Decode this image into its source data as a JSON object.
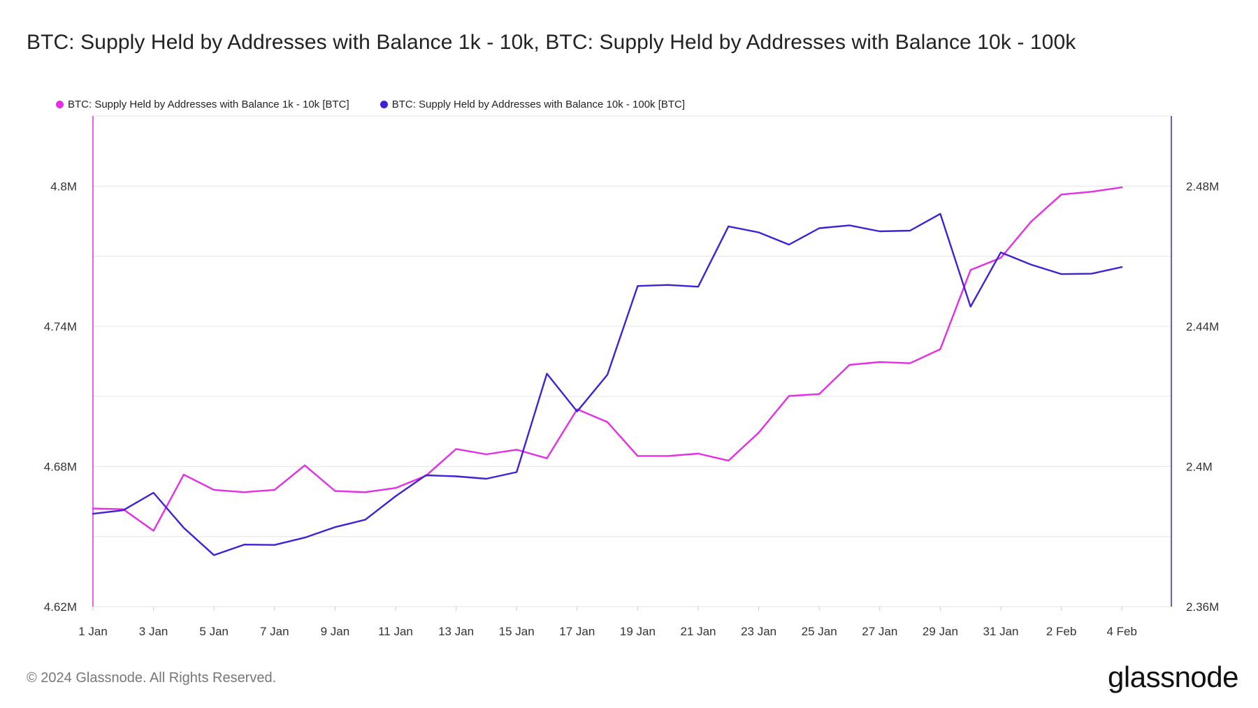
{
  "title": "BTC: Supply Held by Addresses with Balance 1k - 10k, BTC: Supply Held by Addresses with Balance 10k - 100k",
  "footer": {
    "copyright": "© 2024 Glassnode. All Rights Reserved.",
    "brand": "glassnode"
  },
  "chart_data": {
    "type": "line",
    "title": "BTC: Supply Held by Addresses with Balance 1k - 10k, BTC: Supply Held by Addresses with Balance 10k - 100k",
    "legend_position": "top-left",
    "grid": true,
    "x_tick_labels": [
      "1 Jan",
      "3 Jan",
      "5 Jan",
      "7 Jan",
      "9 Jan",
      "11 Jan",
      "13 Jan",
      "15 Jan",
      "17 Jan",
      "19 Jan",
      "21 Jan",
      "23 Jan",
      "25 Jan",
      "27 Jan",
      "29 Jan",
      "31 Jan",
      "2 Feb",
      "4 Feb"
    ],
    "x_day_range": [
      1,
      35
    ],
    "left_axis": {
      "ylim": [
        4.62,
        4.83
      ],
      "ticks": [
        4.62,
        4.68,
        4.74,
        4.8
      ],
      "tick_labels": [
        "4.62M",
        "4.68M",
        "4.74M",
        "4.8M"
      ],
      "gridlines": [
        4.62,
        4.65,
        4.68,
        4.71,
        4.74,
        4.77,
        4.8
      ]
    },
    "right_axis": {
      "ylim": [
        2.36,
        2.5
      ],
      "ticks": [
        2.36,
        2.4,
        2.44,
        2.48
      ],
      "tick_labels": [
        "2.36M",
        "2.4M",
        "2.44M",
        "2.48M"
      ]
    },
    "series": [
      {
        "name": "BTC: Supply Held by Addresses with Balance 1k - 10k [BTC]",
        "axis": "left",
        "color": "#e52ee6",
        "values": [
          4.662,
          4.6617,
          4.6525,
          4.6765,
          4.67,
          4.669,
          4.67,
          4.6805,
          4.6695,
          4.669,
          4.6708,
          4.676,
          4.6875,
          4.6852,
          4.6872,
          4.6835,
          4.7045,
          4.699,
          4.6845,
          4.6845,
          4.6855,
          4.6825,
          4.6945,
          4.7102,
          4.711,
          4.7235,
          4.7247,
          4.7242,
          4.7302,
          4.7641,
          4.7693,
          4.7848,
          4.7964,
          4.7976,
          4.7995
        ]
      },
      {
        "name": "BTC: Supply Held by Addresses with Balance 10k - 100k [BTC]",
        "axis": "right",
        "color": "#4220d6",
        "values": [
          2.3865,
          2.3875,
          2.3925,
          2.3825,
          2.3747,
          2.3777,
          2.3776,
          2.3797,
          2.3827,
          2.3848,
          2.3915,
          2.3975,
          2.3972,
          2.3965,
          2.3984,
          2.4265,
          2.4157,
          2.4262,
          2.4515,
          2.4518,
          2.4513,
          2.4685,
          2.4668,
          2.4633,
          2.468,
          2.4688,
          2.4671,
          2.4673,
          2.4721,
          2.4456,
          2.4611,
          2.4576,
          2.4549,
          2.455,
          2.4569
        ]
      }
    ]
  }
}
